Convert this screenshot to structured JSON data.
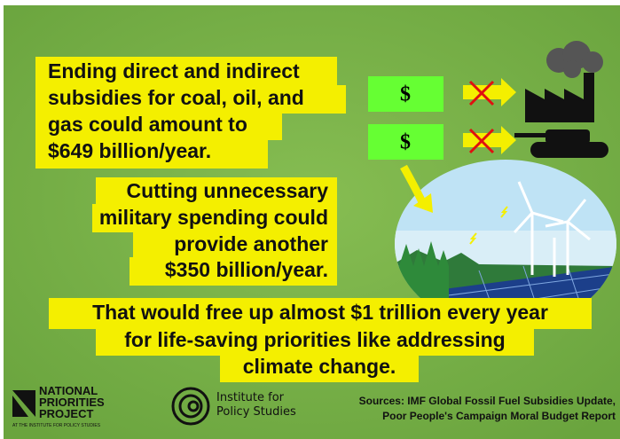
{
  "blocks": [
    {
      "lines": [
        "Ending direct and indirect",
        "subsidies for coal, oil, and",
        "gas could amount to",
        "$649 billion/year."
      ]
    },
    {
      "lines": [
        "Cutting unnecessary",
        "military spending could",
        "provide another",
        "$350 billion/year."
      ]
    },
    {
      "lines": [
        "That would free up almost $1 trillion every year",
        "for life-saving priorities like addressing",
        "climate change."
      ]
    }
  ],
  "money": [
    "$",
    "$"
  ],
  "logos": {
    "npp": [
      "NATIONAL",
      "PRIORITIES",
      "PROJECT"
    ],
    "npp_sub": "AT THE INSTITUTE FOR POLICY STUDIES",
    "ips": [
      "Institute for",
      "Policy Studies"
    ]
  },
  "sources": [
    "Sources: IMF Global Fossil Fuel Subsidies Update,",
    "Poor People's Campaign Moral Budget Report"
  ]
}
